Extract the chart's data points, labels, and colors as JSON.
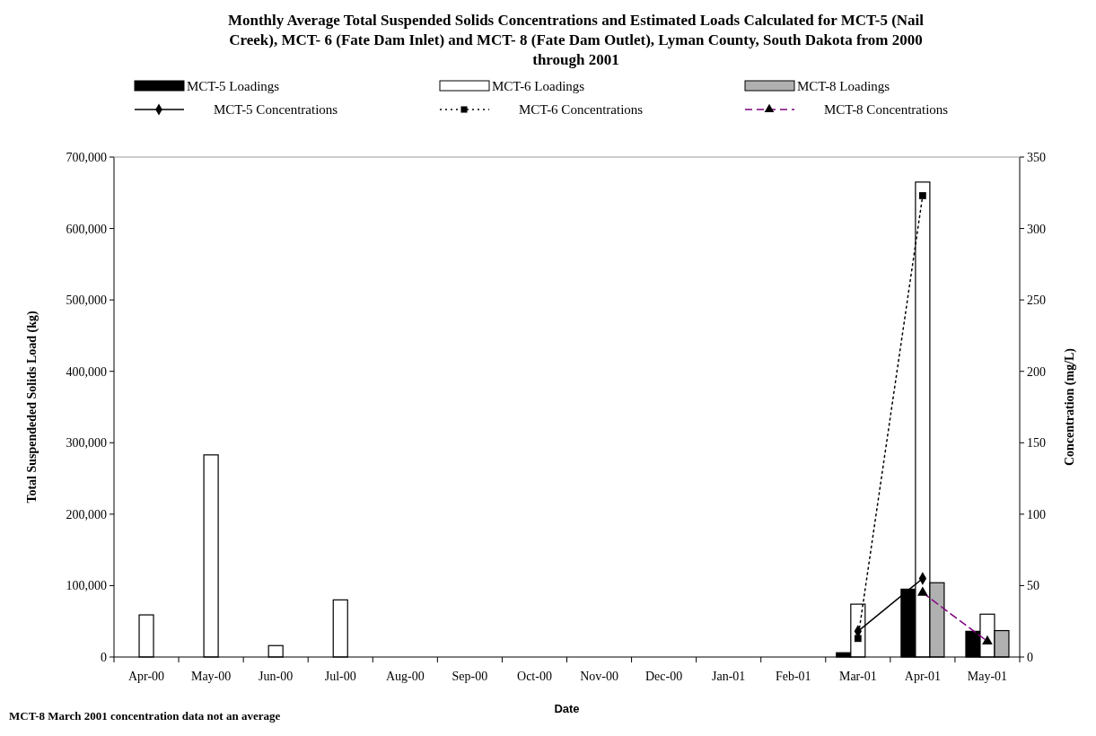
{
  "chart_data": {
    "type": "bar",
    "title": "Monthly Average Total Suspended Solids Concentrations and Estimated Loads Calculated for MCT-5 (Nail Creek), MCT- 6 (Fate Dam Inlet) and MCT- 8 (Fate Dam Outlet), Lyman County, South Dakota from 2000 through 2001",
    "xlabel": "Date",
    "ylabel": "Total Suspendeded Solids Load (kg)",
    "y2label": "Concentration (mg/L)",
    "categories": [
      "Apr-00",
      "May-00",
      "Jun-00",
      "Jul-00",
      "Aug-00",
      "Sep-00",
      "Oct-00",
      "Nov-00",
      "Dec-00",
      "Jan-01",
      "Feb-01",
      "Mar-01",
      "Apr-01",
      "May-01"
    ],
    "series": [
      {
        "name": "MCT-5 Loadings",
        "color": "#000000",
        "values": [
          null,
          null,
          null,
          null,
          null,
          null,
          null,
          null,
          null,
          null,
          null,
          6000,
          95000,
          36000
        ]
      },
      {
        "name": "MCT-6 Loadings",
        "color": "#ffffff",
        "values": [
          59000,
          283000,
          16000,
          80000,
          null,
          null,
          null,
          null,
          null,
          null,
          null,
          74000,
          665000,
          60000
        ]
      },
      {
        "name": "MCT-8 Loadings",
        "color": "#b0b0b0",
        "values": [
          null,
          null,
          null,
          null,
          null,
          null,
          null,
          null,
          null,
          null,
          null,
          null,
          104000,
          37000
        ]
      },
      {
        "name": "MCT-5 Concentrations",
        "type": "line",
        "axis": "y2",
        "color": "#000000",
        "marker": "diamond",
        "line_style": "solid",
        "values": [
          null,
          null,
          null,
          null,
          null,
          null,
          null,
          null,
          null,
          null,
          null,
          18,
          55,
          null
        ]
      },
      {
        "name": "MCT-6 Concentrations",
        "type": "line",
        "axis": "y2",
        "color": "#000000",
        "marker": "square",
        "line_style": "dotted",
        "values": [
          null,
          null,
          null,
          null,
          null,
          null,
          null,
          null,
          null,
          null,
          null,
          13,
          323,
          null
        ]
      },
      {
        "name": "MCT-8 Concentrations",
        "type": "line",
        "axis": "y2",
        "color": "#800080",
        "marker": "triangle",
        "line_style": "dashed",
        "values": [
          null,
          null,
          null,
          null,
          null,
          null,
          null,
          null,
          null,
          null,
          null,
          null,
          45,
          11
        ]
      }
    ],
    "ylim": [
      0,
      700000
    ],
    "yticks": [
      {
        "value": 0,
        "label": "0"
      },
      {
        "value": 100000,
        "label": "100,000"
      },
      {
        "value": 200000,
        "label": "200,000"
      },
      {
        "value": 300000,
        "label": "300,000"
      },
      {
        "value": 400000,
        "label": "400,000"
      },
      {
        "value": 500000,
        "label": "500,000"
      },
      {
        "value": 600000,
        "label": "600,000"
      },
      {
        "value": 700000,
        "label": "700,000"
      }
    ],
    "y2lim": [
      0,
      350
    ],
    "y2ticks": [
      0,
      50,
      100,
      150,
      200,
      250,
      300,
      350
    ],
    "legend": "top",
    "grid": false,
    "annotations": [
      "MCT-8 March 2001 concentration data not an average"
    ]
  }
}
